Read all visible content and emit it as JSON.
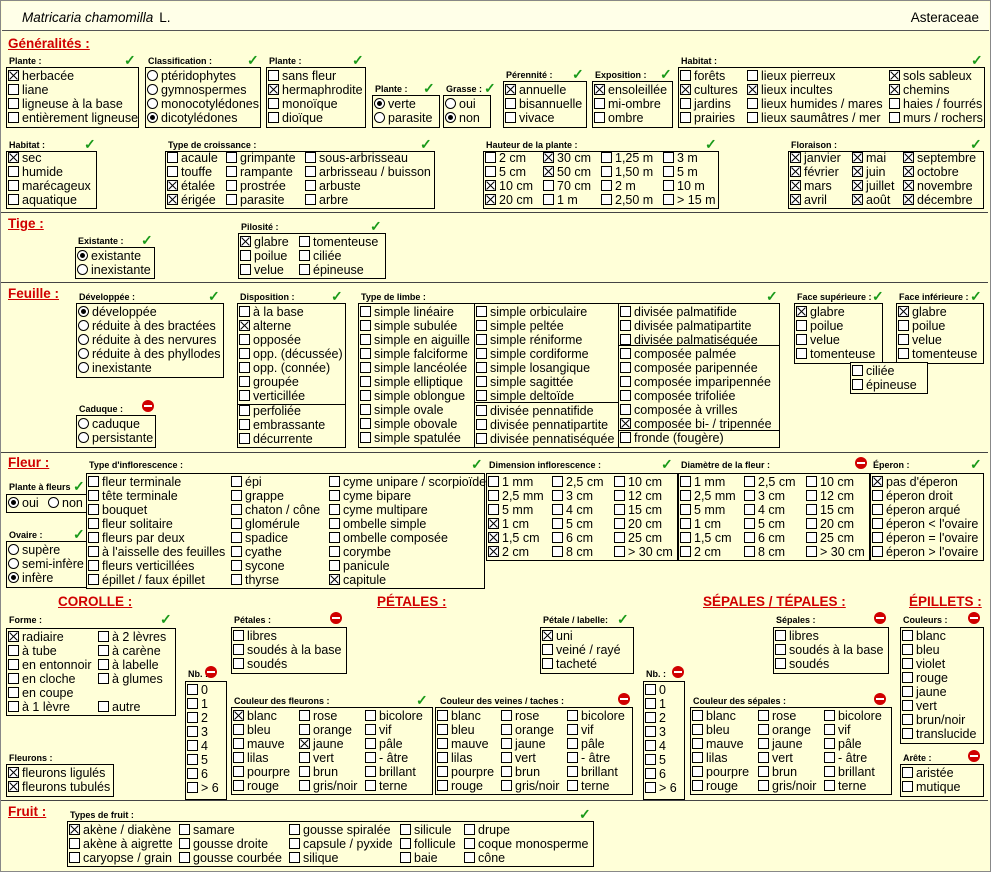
{
  "header": {
    "species": "Matricaria chamomilla",
    "author": "L.",
    "family": "Asteraceae"
  },
  "sections": {
    "generalites": "Généralités :",
    "tige": "Tige :",
    "feuille": "Feuille :",
    "fleur": "Fleur :",
    "corolle": "COROLLE :",
    "petales": "PÉTALES :",
    "sepales": "SÉPALES / TÉPALES :",
    "epillets": "ÉPILLETS :",
    "fruit": "Fruit :"
  },
  "labels": {
    "plante": "Plante :",
    "classification": "Classification :",
    "plante2": "Plante :",
    "plante3": "Plante :",
    "grasse": "Grasse :",
    "perennite": "Pérennité :",
    "exposition": "Exposition :",
    "habitat": "Habitat :",
    "habitat2": "Habitat :",
    "croissance": "Type de croissance :",
    "hauteur": "Hauteur de la plante :",
    "floraison": "Floraison :",
    "existante": "Existante :",
    "pilosite": "Pilosité :",
    "developpee": "Développée :",
    "caduque": "Caduque :",
    "disposition": "Disposition :",
    "limbe": "Type de limbe :",
    "face_sup": "Face supérieure :",
    "face_inf": "Face inférieure :",
    "inflorescence": "Type d'inflorescence :",
    "dim_inflo": "Dimension inflorescence :",
    "diam_fleur": "Diamètre de la fleur :",
    "eperon": "Éperon :",
    "plante_fleurs": "Plante à fleurs",
    "ovaire": "Ovaire :",
    "forme": "Forme :",
    "fleurons": "Fleurons :",
    "petales_lbl": "Pétales :",
    "petale_labelle": "Pétale / labelle:",
    "nb": "Nb. :",
    "couleur_fleurons": "Couleur des fleurons :",
    "couleur_veines": "Couleur des veines / taches :",
    "sepales_lbl": "Sépales :",
    "nb2": "Nb. :",
    "couleur_sepales": "Couleur des sépales :",
    "couleurs": "Couleurs :",
    "arete": "Arête :",
    "types_fruit": "Types de fruit :"
  },
  "options": {
    "plante": [
      [
        "herbacée",
        1
      ],
      [
        "liane",
        0
      ],
      [
        "ligneuse à la base",
        0
      ],
      [
        "entièrement ligneuse",
        0
      ]
    ],
    "classification": [
      [
        "ptéridophytes",
        0
      ],
      [
        "gymnospermes",
        0
      ],
      [
        "monocotylédones",
        0
      ],
      [
        "dicotylédones",
        1
      ]
    ],
    "plante2": [
      [
        "sans fleur",
        0
      ],
      [
        "hermaphrodite",
        1
      ],
      [
        "monoïque",
        0
      ],
      [
        "dioïque",
        0
      ]
    ],
    "plante3": [
      [
        "verte",
        1
      ],
      [
        "parasite",
        0
      ]
    ],
    "grasse": [
      [
        "oui",
        0
      ],
      [
        "non",
        1
      ]
    ],
    "perennite": [
      [
        "annuelle",
        1
      ],
      [
        "bisannuelle",
        0
      ],
      [
        "vivace",
        0
      ]
    ],
    "exposition": [
      [
        "ensoleillée",
        1
      ],
      [
        "mi-ombre",
        0
      ],
      [
        "ombre",
        0
      ]
    ],
    "habitat_a": [
      [
        "forêts",
        0
      ],
      [
        "cultures",
        1
      ],
      [
        "jardins",
        0
      ],
      [
        "prairies",
        0
      ]
    ],
    "habitat_b": [
      [
        "lieux pierreux",
        0
      ],
      [
        "lieux incultes",
        1
      ],
      [
        "lieux humides / mares",
        0
      ],
      [
        "lieux saumâtres / mer",
        0
      ]
    ],
    "habitat_c": [
      [
        "sols sableux",
        1
      ],
      [
        "chemins",
        1
      ],
      [
        "haies / fourrés",
        0
      ],
      [
        "murs / rochers",
        0
      ]
    ],
    "habitat2": [
      [
        "sec",
        1
      ],
      [
        "humide",
        0
      ],
      [
        "marécageux",
        0
      ],
      [
        "aquatique",
        0
      ]
    ],
    "croissance_a": [
      [
        "acaule",
        0
      ],
      [
        "touffe",
        0
      ],
      [
        "étalée",
        1
      ],
      [
        "érigée",
        1
      ]
    ],
    "croissance_b": [
      [
        "grimpante",
        0
      ],
      [
        "rampante",
        0
      ],
      [
        "prostrée",
        0
      ],
      [
        "parasite",
        0
      ]
    ],
    "croissance_c": [
      [
        "sous-arbrisseau",
        0
      ],
      [
        "arbrisseau / buisson",
        0
      ],
      [
        "arbuste",
        0
      ],
      [
        "arbre",
        0
      ]
    ],
    "hauteur_a": [
      [
        "2 cm",
        0
      ],
      [
        "5 cm",
        0
      ],
      [
        "10 cm",
        1
      ],
      [
        "20 cm",
        1
      ]
    ],
    "hauteur_b": [
      [
        "30 cm",
        1
      ],
      [
        "50 cm",
        1
      ],
      [
        "70 cm",
        0
      ],
      [
        "1 m",
        0
      ]
    ],
    "hauteur_c": [
      [
        "1,25 m",
        0
      ],
      [
        "1,50 m",
        0
      ],
      [
        "2 m",
        0
      ],
      [
        "2,50 m",
        0
      ]
    ],
    "hauteur_d": [
      [
        "3 m",
        0
      ],
      [
        "5 m",
        0
      ],
      [
        "10 m",
        0
      ],
      [
        "> 15 m",
        0
      ]
    ],
    "floraison_a": [
      [
        "janvier",
        1
      ],
      [
        "février",
        1
      ],
      [
        "mars",
        1
      ],
      [
        "avril",
        1
      ]
    ],
    "floraison_b": [
      [
        "mai",
        1
      ],
      [
        "juin",
        1
      ],
      [
        "juillet",
        1
      ],
      [
        "août",
        1
      ]
    ],
    "floraison_c": [
      [
        "septembre",
        1
      ],
      [
        "octobre",
        1
      ],
      [
        "novembre",
        1
      ],
      [
        "décembre",
        1
      ]
    ],
    "existante": [
      [
        "existante",
        1
      ],
      [
        "inexistante",
        0
      ]
    ],
    "pilosite_a": [
      [
        "glabre",
        1
      ],
      [
        "poilue",
        0
      ],
      [
        "velue",
        0
      ]
    ],
    "pilosite_b": [
      [
        "tomenteuse",
        0
      ],
      [
        "ciliée",
        0
      ],
      [
        "épineuse",
        0
      ]
    ],
    "developpee": [
      [
        "développée",
        1
      ],
      [
        "réduite à des bractées",
        0
      ],
      [
        "réduite à des nervures",
        0
      ],
      [
        "réduite à des phyllodes",
        0
      ],
      [
        "inexistante",
        0
      ]
    ],
    "caduque": [
      [
        "caduque",
        0
      ],
      [
        "persistante",
        0
      ]
    ],
    "disposition": [
      [
        "à la base",
        0
      ],
      [
        "alterne",
        1
      ],
      [
        "opposée",
        0
      ],
      [
        "opp. (décussée)",
        0
      ],
      [
        "opp. (connée)",
        0
      ],
      [
        "groupée",
        0
      ],
      [
        "verticillée",
        0
      ]
    ],
    "disposition_b": [
      [
        "perfoliée",
        0
      ],
      [
        "embrassante",
        0
      ],
      [
        "décurrente",
        0
      ]
    ],
    "limbe_a": [
      [
        "simple linéaire",
        0
      ],
      [
        "simple subulée",
        0
      ],
      [
        "simple en aiguille",
        0
      ],
      [
        "simple falciforme",
        0
      ],
      [
        "simple lancéolée",
        0
      ],
      [
        "simple elliptique",
        0
      ],
      [
        "simple oblongue",
        0
      ],
      [
        "simple ovale",
        0
      ],
      [
        "simple obovale",
        0
      ],
      [
        "simple spatulée",
        0
      ]
    ],
    "limbe_b": [
      [
        "simple orbiculaire",
        0
      ],
      [
        "simple peltée",
        0
      ],
      [
        "simple réniforme",
        0
      ],
      [
        "simple cordiforme",
        0
      ],
      [
        "simple losangique",
        0
      ],
      [
        "simple sagittée",
        0
      ],
      [
        "simple deltoïde",
        0
      ]
    ],
    "limbe_b2": [
      [
        "divisée pennatifide",
        0
      ],
      [
        "divisée pennatipartite",
        0
      ],
      [
        "divisée pennatiséquée",
        0
      ]
    ],
    "limbe_c": [
      [
        "divisée palmatifide",
        0
      ],
      [
        "divisée palmatipartite",
        0
      ],
      [
        "divisée palmatiséquée",
        0
      ]
    ],
    "limbe_c2": [
      [
        "composée palmée",
        0
      ],
      [
        "composée paripennée",
        0
      ],
      [
        "composée imparipennée",
        0
      ],
      [
        "composée trifoliée",
        0
      ],
      [
        "composée à vrilles",
        0
      ],
      [
        "composée bi- / tripennée",
        1
      ]
    ],
    "limbe_c3": [
      [
        "fronde (fougère)",
        0
      ]
    ],
    "face_sup": [
      [
        "glabre",
        1
      ],
      [
        "poilue",
        0
      ],
      [
        "velue",
        0
      ],
      [
        "tomenteuse",
        0
      ]
    ],
    "face_inf": [
      [
        "glabre",
        1
      ],
      [
        "poilue",
        0
      ],
      [
        "velue",
        0
      ],
      [
        "tomenteuse",
        0
      ]
    ],
    "face_inf2": [
      [
        "ciliée",
        0
      ],
      [
        "épineuse",
        0
      ]
    ],
    "plante_fleurs": [
      [
        "oui",
        1
      ],
      [
        "non",
        0
      ]
    ],
    "ovaire": [
      [
        "supère",
        0
      ],
      [
        "semi-infère",
        0
      ],
      [
        "infère",
        1
      ]
    ],
    "inflo_a": [
      [
        "fleur terminale",
        0
      ],
      [
        "tête terminale",
        0
      ],
      [
        "bouquet",
        0
      ],
      [
        "fleur solitaire",
        0
      ],
      [
        "fleurs par deux",
        0
      ],
      [
        "à l'aisselle des feuilles",
        0
      ],
      [
        "fleurs verticillées",
        0
      ],
      [
        "épillet / faux épillet",
        0
      ]
    ],
    "inflo_b": [
      [
        "épi",
        0
      ],
      [
        "grappe",
        0
      ],
      [
        "chaton / cône",
        0
      ],
      [
        "glomérule",
        0
      ],
      [
        "spadice",
        0
      ],
      [
        "cyathe",
        0
      ],
      [
        "sycone",
        0
      ],
      [
        "thyrse",
        0
      ]
    ],
    "inflo_c": [
      [
        "cyme unipare / scorpioïde",
        0
      ],
      [
        "cyme bipare",
        0
      ],
      [
        "cyme multipare",
        0
      ],
      [
        "ombelle simple",
        0
      ],
      [
        "ombelle composée",
        0
      ],
      [
        "corymbe",
        0
      ],
      [
        "panicule",
        0
      ],
      [
        "capitule",
        1
      ]
    ],
    "dim_a": [
      [
        "1 mm",
        0
      ],
      [
        "2,5 mm",
        0
      ],
      [
        "5 mm",
        0
      ],
      [
        "1 cm",
        1
      ],
      [
        "1,5 cm",
        1
      ],
      [
        "2 cm",
        1
      ]
    ],
    "dim_b": [
      [
        "2,5 cm",
        0
      ],
      [
        "3 cm",
        0
      ],
      [
        "4 cm",
        0
      ],
      [
        "5 cm",
        0
      ],
      [
        "6 cm",
        0
      ],
      [
        "8 cm",
        0
      ]
    ],
    "dim_c": [
      [
        "10 cm",
        0
      ],
      [
        "12 cm",
        0
      ],
      [
        "15 cm",
        0
      ],
      [
        "20 cm",
        0
      ],
      [
        "25 cm",
        0
      ],
      [
        "> 30 cm",
        0
      ]
    ],
    "diam_a": [
      [
        "1 mm",
        0
      ],
      [
        "2,5 mm",
        0
      ],
      [
        "5 mm",
        0
      ],
      [
        "1 cm",
        0
      ],
      [
        "1,5 cm",
        0
      ],
      [
        "2 cm",
        0
      ]
    ],
    "diam_b": [
      [
        "2,5 cm",
        0
      ],
      [
        "3 cm",
        0
      ],
      [
        "4 cm",
        0
      ],
      [
        "5 cm",
        0
      ],
      [
        "6 cm",
        0
      ],
      [
        "8 cm",
        0
      ]
    ],
    "diam_c": [
      [
        "10 cm",
        0
      ],
      [
        "12 cm",
        0
      ],
      [
        "15 cm",
        0
      ],
      [
        "20 cm",
        0
      ],
      [
        "25 cm",
        0
      ],
      [
        "> 30 cm",
        0
      ]
    ],
    "eperon": [
      [
        "pas d'éperon",
        1
      ],
      [
        "éperon droit",
        0
      ],
      [
        "éperon arqué",
        0
      ],
      [
        "éperon < l'ovaire",
        0
      ],
      [
        "éperon = l'ovaire",
        0
      ],
      [
        "éperon > l'ovaire",
        0
      ]
    ],
    "forme_a": [
      [
        "radiaire",
        1
      ],
      [
        "à tube",
        0
      ],
      [
        "en entonnoir",
        0
      ],
      [
        "en cloche",
        0
      ],
      [
        "en coupe",
        0
      ],
      [
        "à 1 lèvre",
        0
      ]
    ],
    "forme_b": [
      [
        "à 2 lèvres",
        0
      ],
      [
        "à carène",
        0
      ],
      [
        "à labelle",
        0
      ],
      [
        "à glumes",
        0
      ]
    ],
    "forme_c": [
      [
        "autre",
        0
      ]
    ],
    "fleurons": [
      [
        "fleurons ligulés",
        1
      ],
      [
        "fleurons tubulés",
        1
      ]
    ],
    "nb": [
      [
        "0",
        0
      ],
      [
        "1",
        0
      ],
      [
        "2",
        0
      ],
      [
        "3",
        0
      ],
      [
        "4",
        0
      ],
      [
        "5",
        0
      ],
      [
        "6",
        0
      ],
      [
        "> 6",
        0
      ]
    ],
    "petales": [
      [
        "libres",
        0
      ],
      [
        "soudés à la base",
        0
      ],
      [
        "soudés",
        0
      ]
    ],
    "petale_labelle": [
      [
        "uni",
        1
      ],
      [
        "veiné / rayé",
        0
      ],
      [
        "tacheté",
        0
      ]
    ],
    "cf_a": [
      [
        "blanc",
        1
      ],
      [
        "bleu",
        0
      ],
      [
        "mauve",
        0
      ],
      [
        "lilas",
        0
      ],
      [
        "pourpre",
        0
      ],
      [
        "rouge",
        0
      ]
    ],
    "cf_b": [
      [
        "rose",
        0
      ],
      [
        "orange",
        0
      ],
      [
        "jaune",
        1
      ],
      [
        "vert",
        0
      ],
      [
        "brun",
        0
      ],
      [
        "gris/noir",
        0
      ]
    ],
    "cf_c": [
      [
        "bicolore",
        0
      ],
      [
        "vif",
        0
      ],
      [
        "pâle",
        0
      ],
      [
        "- âtre",
        0
      ],
      [
        "brillant",
        0
      ],
      [
        "terne",
        0
      ]
    ],
    "cv_a": [
      [
        "blanc",
        0
      ],
      [
        "bleu",
        0
      ],
      [
        "mauve",
        0
      ],
      [
        "lilas",
        0
      ],
      [
        "pourpre",
        0
      ],
      [
        "rouge",
        0
      ]
    ],
    "cv_b": [
      [
        "rose",
        0
      ],
      [
        "orange",
        0
      ],
      [
        "jaune",
        0
      ],
      [
        "vert",
        0
      ],
      [
        "brun",
        0
      ],
      [
        "gris/noir",
        0
      ]
    ],
    "cv_c": [
      [
        "bicolore",
        0
      ],
      [
        "vif",
        0
      ],
      [
        "pâle",
        0
      ],
      [
        "- âtre",
        0
      ],
      [
        "brillant",
        0
      ],
      [
        "terne",
        0
      ]
    ],
    "sepales": [
      [
        "libres",
        0
      ],
      [
        "soudés à la base",
        0
      ],
      [
        "soudés",
        0
      ]
    ],
    "nb2": [
      [
        "0",
        0
      ],
      [
        "1",
        0
      ],
      [
        "2",
        0
      ],
      [
        "3",
        0
      ],
      [
        "4",
        0
      ],
      [
        "5",
        0
      ],
      [
        "6",
        0
      ],
      [
        "> 6",
        0
      ]
    ],
    "cs_a": [
      [
        "blanc",
        0
      ],
      [
        "bleu",
        0
      ],
      [
        "mauve",
        0
      ],
      [
        "lilas",
        0
      ],
      [
        "pourpre",
        0
      ],
      [
        "rouge",
        0
      ]
    ],
    "cs_b": [
      [
        "rose",
        0
      ],
      [
        "orange",
        0
      ],
      [
        "jaune",
        0
      ],
      [
        "vert",
        0
      ],
      [
        "brun",
        0
      ],
      [
        "gris/noir",
        0
      ]
    ],
    "cs_c": [
      [
        "bicolore",
        0
      ],
      [
        "vif",
        0
      ],
      [
        "pâle",
        0
      ],
      [
        "- âtre",
        0
      ],
      [
        "brillant",
        0
      ],
      [
        "terne",
        0
      ]
    ],
    "couleurs": [
      [
        "blanc",
        0
      ],
      [
        "bleu",
        0
      ],
      [
        "violet",
        0
      ],
      [
        "rouge",
        0
      ],
      [
        "jaune",
        0
      ],
      [
        "vert",
        0
      ],
      [
        "brun/noir",
        0
      ],
      [
        "translucide",
        0
      ]
    ],
    "arete": [
      [
        "aristée",
        0
      ],
      [
        "mutique",
        0
      ]
    ],
    "fruit_a": [
      [
        "akène / diakène",
        1
      ],
      [
        "akène à aigrette",
        0
      ],
      [
        "caryopse / grain",
        0
      ]
    ],
    "fruit_b": [
      [
        "samare",
        0
      ],
      [
        "gousse droite",
        0
      ],
      [
        "gousse courbée",
        0
      ]
    ],
    "fruit_c": [
      [
        "gousse spiralée",
        0
      ],
      [
        "capsule / pyxide",
        0
      ],
      [
        "silique",
        0
      ]
    ],
    "fruit_d": [
      [
        "silicule",
        0
      ],
      [
        "follicule",
        0
      ],
      [
        "baie",
        0
      ]
    ],
    "fruit_e": [
      [
        "drupe",
        0
      ],
      [
        "coque monosperme",
        0
      ],
      [
        "cône",
        0
      ]
    ]
  },
  "colors": {
    "background": "#ffffd8",
    "section_title": "#d00000",
    "check": "#1a9a1a",
    "not_ok": "#d00000"
  }
}
